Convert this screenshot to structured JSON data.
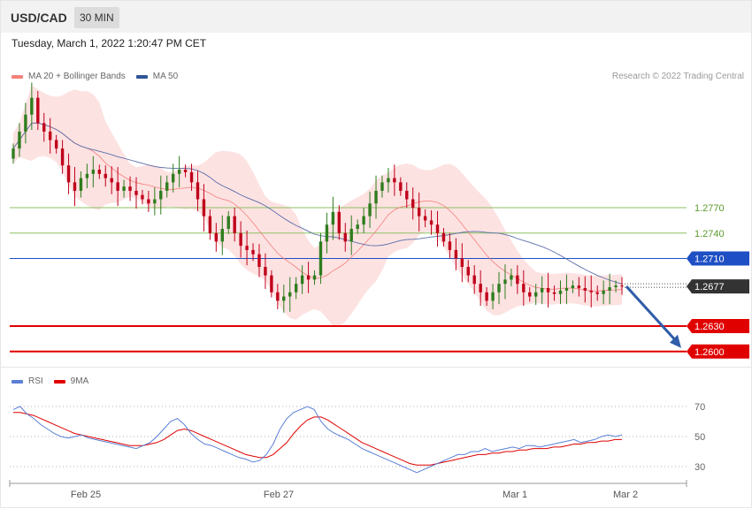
{
  "header": {
    "pair": "USD/CAD",
    "timeframe": "30 MIN"
  },
  "datetime": "Tuesday, March 1, 2022 1:20:47 PM CET",
  "credit": "Research © 2022 Trading Central",
  "legend_main": [
    {
      "label": "MA 20 + Bollinger Bands",
      "color": "#f4807a"
    },
    {
      "label": "MA 50",
      "color": "#2f5597"
    }
  ],
  "legend_rsi": [
    {
      "label": "RSI",
      "color": "#5b7fd6"
    },
    {
      "label": "9MA",
      "color": "#e00000"
    }
  ],
  "colors": {
    "bull": "#2e7d1e",
    "bear": "#c0001b",
    "band": "#fde2e2",
    "ma20": "#f4807a",
    "ma50": "#5a6fa8",
    "support": "#e00000",
    "resist_green": "#8cc063",
    "pivot_blue": "#1f4fc4",
    "arrow": "#2f5da8"
  },
  "chart_data": [
    {
      "type": "candlestick",
      "title": "USD/CAD",
      "timeframe": "30 MIN",
      "ylim": [
        1.2582,
        1.2932
      ],
      "x_ticks": [
        "Feb 25",
        "Feb 27",
        "Mar 1",
        "Mar 2"
      ],
      "series": [
        {
          "name": "MA 20 + Bollinger Bands",
          "kind": "ma_band"
        },
        {
          "name": "MA 50",
          "kind": "line"
        }
      ],
      "levels": [
        {
          "value": 1.277,
          "label": "1.2770",
          "kind": "resistance"
        },
        {
          "value": 1.274,
          "label": "1.2740",
          "kind": "resistance"
        },
        {
          "value": 1.271,
          "label": "1.2710",
          "kind": "pivot"
        },
        {
          "value": 1.2677,
          "label": "1.2677",
          "kind": "last"
        },
        {
          "value": 1.263,
          "label": "1.2630",
          "kind": "support"
        },
        {
          "value": 1.26,
          "label": "1.2600",
          "kind": "support"
        }
      ],
      "forecast_arrow": {
        "from": 1.2677,
        "to": 1.26,
        "direction": "down"
      },
      "candle_closes_approx": [
        1.284,
        1.286,
        1.288,
        1.29,
        1.287,
        1.286,
        1.285,
        1.284,
        1.282,
        1.28,
        1.279,
        1.2805,
        1.281,
        1.2815,
        1.281,
        1.2805,
        1.28,
        1.279,
        1.2795,
        1.279,
        1.2785,
        1.278,
        1.2775,
        1.278,
        1.279,
        1.28,
        1.281,
        1.2815,
        1.2812,
        1.28,
        1.278,
        1.276,
        1.274,
        1.273,
        1.2745,
        1.276,
        1.274,
        1.2725,
        1.272,
        1.2715,
        1.27,
        1.269,
        1.267,
        1.266,
        1.2665,
        1.267,
        1.268,
        1.269,
        1.2685,
        1.269,
        1.273,
        1.275,
        1.2765,
        1.274,
        1.273,
        1.2745,
        1.275,
        1.276,
        1.2775,
        1.279,
        1.28,
        1.2805,
        1.28,
        1.279,
        1.278,
        1.277,
        1.276,
        1.2755,
        1.275,
        1.274,
        1.273,
        1.272,
        1.271,
        1.27,
        1.269,
        1.268,
        1.267,
        1.266,
        1.267,
        1.268,
        1.2685,
        1.269,
        1.268,
        1.267,
        1.2665,
        1.267,
        1.2675,
        1.267,
        1.2668,
        1.2672,
        1.2675,
        1.2678,
        1.2675,
        1.2672,
        1.267,
        1.2668,
        1.2672,
        1.2676,
        1.2678,
        1.2677
      ]
    },
    {
      "type": "line",
      "title": "RSI",
      "ylim": [
        20,
        80
      ],
      "y_ticks": [
        70,
        50,
        30
      ],
      "series": [
        {
          "name": "RSI",
          "values": [
            68,
            70,
            65,
            62,
            58,
            55,
            52,
            50,
            49,
            50,
            51,
            49,
            48,
            47,
            46,
            45,
            44,
            43,
            42,
            44,
            46,
            50,
            55,
            60,
            62,
            58,
            52,
            48,
            45,
            44,
            42,
            40,
            38,
            36,
            35,
            33,
            34,
            38,
            45,
            55,
            62,
            66,
            68,
            70,
            68,
            60,
            55,
            52,
            50,
            48,
            45,
            42,
            40,
            38,
            36,
            34,
            32,
            30,
            28,
            26,
            28,
            30,
            32,
            34,
            36,
            38,
            38,
            40,
            40,
            42,
            40,
            41,
            42,
            43,
            42,
            44,
            44,
            43,
            44,
            45,
            46,
            47,
            48,
            46,
            47,
            48,
            50,
            51,
            50,
            51
          ],
          "last": 51
        },
        {
          "name": "9MA",
          "values": [
            66,
            66,
            65,
            64,
            62,
            60,
            58,
            56,
            54,
            52,
            51,
            50,
            49,
            48,
            47,
            46,
            45,
            44,
            44,
            44,
            45,
            46,
            48,
            51,
            54,
            55,
            54,
            52,
            50,
            48,
            46,
            44,
            42,
            40,
            38,
            37,
            36,
            36,
            38,
            42,
            46,
            52,
            57,
            61,
            63,
            63,
            61,
            58,
            55,
            52,
            49,
            46,
            44,
            42,
            40,
            38,
            36,
            34,
            32,
            31,
            31,
            31,
            32,
            33,
            34,
            35,
            36,
            37,
            38,
            38,
            39,
            39,
            40,
            40,
            41,
            41,
            42,
            42,
            42,
            43,
            43,
            44,
            45,
            45,
            46,
            46,
            47,
            47,
            48,
            48
          ],
          "last": 48
        }
      ]
    }
  ]
}
